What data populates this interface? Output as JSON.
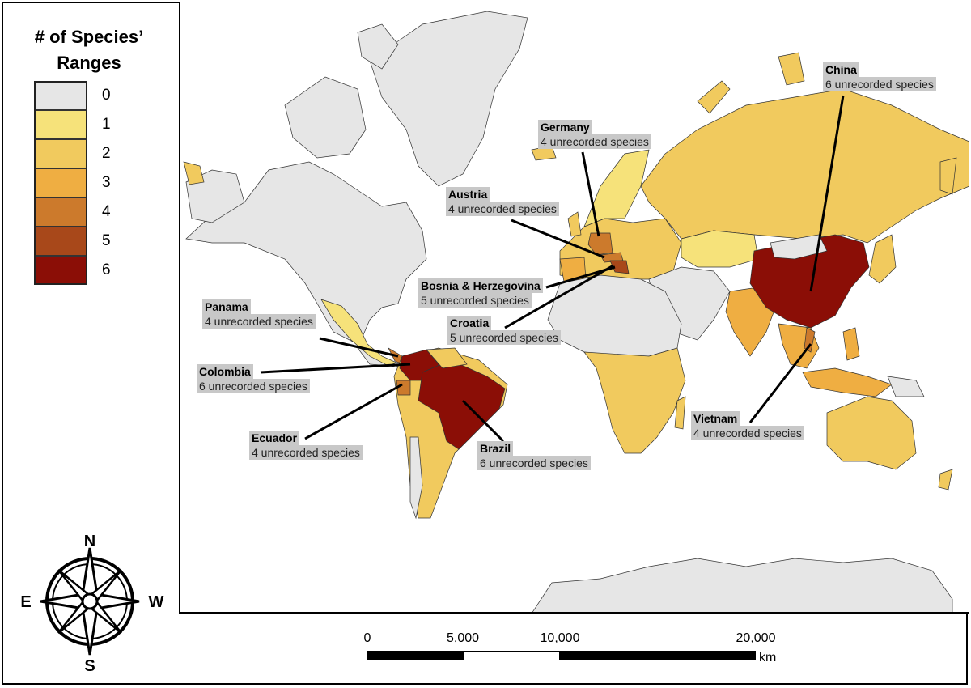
{
  "legend": {
    "title": "# of Species’ Ranges",
    "items": [
      {
        "label": "0",
        "color": "#e6e6e6"
      },
      {
        "label": "1",
        "color": "#f6e27a"
      },
      {
        "label": "2",
        "color": "#f1ca5e"
      },
      {
        "label": "3",
        "color": "#efae42"
      },
      {
        "label": "4",
        "color": "#cc7a2c"
      },
      {
        "label": "5",
        "color": "#a8481a"
      },
      {
        "label": "6",
        "color": "#8b0e06"
      }
    ]
  },
  "callouts": [
    {
      "id": "china",
      "name": "China",
      "count": "6 unrecorded species"
    },
    {
      "id": "germany",
      "name": "Germany",
      "count": "4 unrecorded species"
    },
    {
      "id": "austria",
      "name": "Austria",
      "count": "4 unrecorded species"
    },
    {
      "id": "bosnia",
      "name": "Bosnia & Herzegovina",
      "count": "5 unrecorded species"
    },
    {
      "id": "croatia",
      "name": "Croatia",
      "count": "5 unrecorded species"
    },
    {
      "id": "panama",
      "name": "Panama",
      "count": "4 unrecorded species"
    },
    {
      "id": "colombia",
      "name": "Colombia",
      "count": "6 unrecorded species"
    },
    {
      "id": "ecuador",
      "name": "Ecuador",
      "count": "4 unrecorded species"
    },
    {
      "id": "brazil",
      "name": "Brazil",
      "count": "6 unrecorded species"
    },
    {
      "id": "vietnam",
      "name": "Vietnam",
      "count": "4 unrecorded species"
    }
  ],
  "compass": {
    "n": "N",
    "s": "S",
    "e": "E",
    "w": "W"
  },
  "scale": {
    "labels": [
      "0",
      "5,000",
      "10,000",
      "20,000"
    ],
    "unit": "km"
  }
}
